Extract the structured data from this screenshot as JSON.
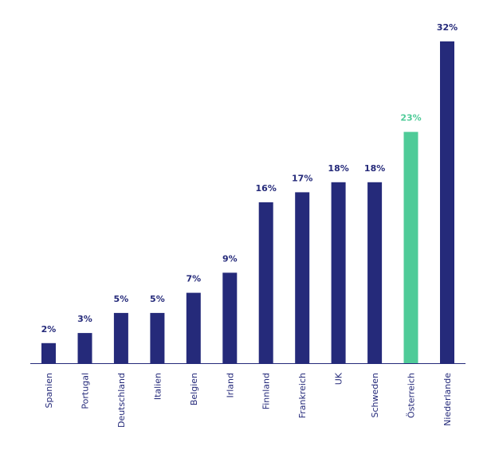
{
  "chart_data": {
    "type": "bar",
    "categories": [
      "Spanien",
      "Portugal",
      "Deutschland",
      "Italien",
      "Belgien",
      "Irland",
      "Finnland",
      "Frankreich",
      "UK",
      "Schweden",
      "Österreich",
      "Niederlande"
    ],
    "values": [
      2,
      3,
      5,
      5,
      7,
      9,
      16,
      17,
      18,
      18,
      23,
      32
    ],
    "value_labels": [
      "2%",
      "3%",
      "5%",
      "5%",
      "7%",
      "9%",
      "16%",
      "17%",
      "18%",
      "18%",
      "23%",
      "32%"
    ],
    "unit": "%",
    "highlight_index": 10,
    "colors": {
      "bar": "#252a7a",
      "highlight": "#4fcb98",
      "axis": "#252a7a",
      "text": "#252a7a"
    },
    "ylim": [
      0,
      32
    ],
    "grid": false,
    "legend": "none"
  }
}
